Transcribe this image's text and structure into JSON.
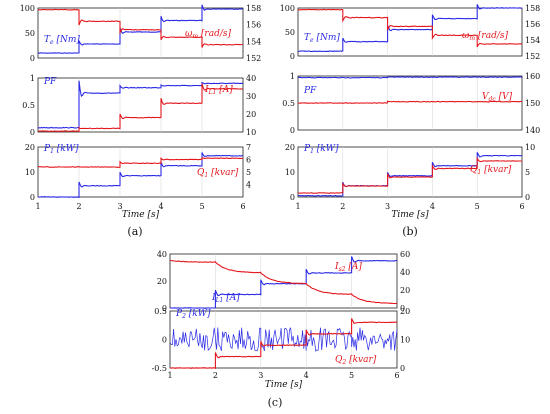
{
  "colors": {
    "blue": "#2a2ae6",
    "red": "#e4161c",
    "axis": "#222222",
    "grid": "#d4d4d4"
  },
  "chart_data": [
    {
      "caption": "(a)",
      "type": "line",
      "xlabel": "Time [s]",
      "xlim": [
        1,
        6
      ],
      "xticks": [
        "1",
        "2",
        "3",
        "4",
        "5",
        "6"
      ],
      "panels": [
        {
          "left_ylim": [
            0,
            100
          ],
          "left_ticks": [
            "0",
            "50",
            "100"
          ],
          "right_ylim": [
            152,
            158
          ],
          "right_ticks": [
            "152",
            "154",
            "156",
            "158"
          ],
          "series": [
            {
              "name": "Te [Nm]",
              "label_main": "T",
              "label_sub": "e",
              "label_unit": " [Nm]",
              "axis": "left",
              "color": "blue",
              "steps": [
                [
                  1,
                  10
                ],
                [
                  2,
                  28
                ],
                [
                  3,
                  52
                ],
                [
                  4,
                  75
                ],
                [
                  5,
                  98
                ],
                [
                  6,
                  98
                ]
              ]
            },
            {
              "name": "ωm [rad/s]",
              "label_main": "ω",
              "label_sub": "m",
              "label_unit": " [rad/s]",
              "axis": "right",
              "color": "red",
              "steps": [
                [
                  1,
                  157.8
                ],
                [
                  2,
                  156.4
                ],
                [
                  3,
                  155.4
                ],
                [
                  4,
                  154.5
                ],
                [
                  5,
                  153.6
                ],
                [
                  6,
                  153.6
                ]
              ]
            }
          ]
        },
        {
          "left_ylim": [
            0,
            1
          ],
          "left_ticks": [
            "0",
            "0.5",
            "1"
          ],
          "right_ylim": [
            10,
            40
          ],
          "right_ticks": [
            "10",
            "20",
            "30",
            "40"
          ],
          "series": [
            {
              "name": "PF",
              "label_main": "PF",
              "label_sub": "",
              "label_unit": "",
              "axis": "left",
              "color": "blue",
              "steps": [
                [
                  1,
                  0.08
                ],
                [
                  2,
                  0.72
                ],
                [
                  3,
                  0.82
                ],
                [
                  4,
                  0.86
                ],
                [
                  5,
                  0.9
                ],
                [
                  6,
                  0.9
                ]
              ]
            },
            {
              "name": "IL1 [A]",
              "label_main": "I",
              "label_sub": "L1",
              "label_unit": " [A]",
              "axis": "right",
              "color": "red",
              "steps": [
                [
                  1,
                  10.5
                ],
                [
                  2,
                  12
                ],
                [
                  3,
                  18
                ],
                [
                  4,
                  26
                ],
                [
                  5,
                  34
                ],
                [
                  6,
                  34
                ]
              ]
            }
          ]
        },
        {
          "left_ylim": [
            0,
            20
          ],
          "left_ticks": [
            "0",
            "10",
            "20"
          ],
          "right_ylim": [
            3,
            7
          ],
          "right_ticks": [
            "4",
            "5",
            "6",
            "7"
          ],
          "series": [
            {
              "name": "P1 [kW]",
              "label_main": "P",
              "label_sub": "1",
              "label_unit": " [kW]",
              "axis": "left",
              "color": "blue",
              "steps": [
                [
                  1,
                  0
                ],
                [
                  2,
                  4.5
                ],
                [
                  3,
                  8.5
                ],
                [
                  4,
                  12.5
                ],
                [
                  5,
                  16.5
                ],
                [
                  6,
                  16.5
                ]
              ]
            },
            {
              "name": "Q1 [kvar]",
              "label_main": "Q",
              "label_sub": "1",
              "label_unit": " [kvar]",
              "axis": "right",
              "color": "red",
              "steps": [
                [
                  1,
                  5.4
                ],
                [
                  2,
                  5.4
                ],
                [
                  3,
                  5.7
                ],
                [
                  4,
                  6.0
                ],
                [
                  5,
                  6.1
                ],
                [
                  6,
                  6.1
                ]
              ]
            }
          ]
        }
      ]
    },
    {
      "caption": "(b)",
      "type": "line",
      "xlabel": "Time [s]",
      "xlim": [
        1,
        6
      ],
      "xticks": [
        "1",
        "2",
        "3",
        "4",
        "5",
        "6"
      ],
      "panels": [
        {
          "left_ylim": [
            0,
            100
          ],
          "left_ticks": [
            "0",
            "50",
            "100"
          ],
          "right_ylim": [
            152,
            158
          ],
          "right_ticks": [
            "152",
            "154",
            "156",
            "158"
          ],
          "series": [
            {
              "name": "Te [Nm]",
              "label_main": "T",
              "label_sub": "e",
              "label_unit": " [Nm]",
              "axis": "left",
              "color": "blue",
              "steps": [
                [
                  1,
                  10
                ],
                [
                  2,
                  30
                ],
                [
                  3,
                  55
                ],
                [
                  4,
                  78
                ],
                [
                  5,
                  100
                ],
                [
                  6,
                  100
                ]
              ]
            },
            {
              "name": "ωm [rad/s]",
              "label_main": "ω",
              "label_sub": "m",
              "label_unit": " [rad/s]",
              "axis": "right",
              "color": "red",
              "steps": [
                [
                  1,
                  157.8
                ],
                [
                  2,
                  156.8
                ],
                [
                  3,
                  155.7
                ],
                [
                  4,
                  154.6
                ],
                [
                  5,
                  153.5
                ],
                [
                  6,
                  153.5
                ]
              ]
            }
          ]
        },
        {
          "left_ylim": [
            0,
            1
          ],
          "left_ticks": [
            "0",
            "0.5",
            "1"
          ],
          "right_ylim": [
            140,
            160
          ],
          "right_ticks": [
            "140",
            "150",
            "160"
          ],
          "series": [
            {
              "name": "PF",
              "label_main": "PF",
              "label_sub": "",
              "label_unit": "",
              "axis": "left",
              "color": "blue",
              "steps": [
                [
                  1,
                  0.97
                ],
                [
                  2,
                  0.97
                ],
                [
                  3,
                  0.98
                ],
                [
                  4,
                  0.98
                ],
                [
                  5,
                  0.98
                ],
                [
                  6,
                  0.98
                ]
              ]
            },
            {
              "name": "Vdc [V]",
              "label_main": "V",
              "label_sub": "dc",
              "label_unit": " [V]",
              "axis": "right",
              "color": "red",
              "steps": [
                [
                  1,
                  150
                ],
                [
                  2,
                  150
                ],
                [
                  3,
                  150.5
                ],
                [
                  4,
                  150.5
                ],
                [
                  5,
                  150.5
                ],
                [
                  6,
                  150.5
                ]
              ]
            }
          ]
        },
        {
          "left_ylim": [
            0,
            20
          ],
          "left_ticks": [
            "0",
            "10",
            "20"
          ],
          "right_ylim": [
            0,
            10
          ],
          "right_ticks": [
            "0",
            "5",
            "10"
          ],
          "series": [
            {
              "name": "P1 [kW]",
              "label_main": "P",
              "label_sub": "1",
              "label_unit": " [kW]",
              "axis": "left",
              "color": "blue",
              "steps": [
                [
                  1,
                  0.5
                ],
                [
                  2,
                  4.5
                ],
                [
                  3,
                  8.5
                ],
                [
                  4,
                  12.5
                ],
                [
                  5,
                  16.5
                ],
                [
                  6,
                  16.5
                ]
              ]
            },
            {
              "name": "Q1 [kvar]",
              "label_main": "Q",
              "label_sub": "1",
              "label_unit": " [kvar]",
              "axis": "right",
              "color": "red",
              "steps": [
                [
                  1,
                  0.8
                ],
                [
                  2,
                  2.2
                ],
                [
                  3,
                  4.0
                ],
                [
                  4,
                  5.7
                ],
                [
                  5,
                  7.2
                ],
                [
                  6,
                  7.2
                ]
              ]
            }
          ]
        }
      ]
    },
    {
      "caption": "(c)",
      "type": "line",
      "xlabel": "Time [s]",
      "xlim": [
        1,
        6
      ],
      "xticks": [
        "1",
        "2",
        "3",
        "4",
        "5",
        "6"
      ],
      "panels": [
        {
          "left_ylim": [
            0,
            40
          ],
          "left_ticks": [
            "0",
            "20",
            "40"
          ],
          "right_ylim": [
            0,
            60
          ],
          "right_ticks": [
            "0",
            "20",
            "40",
            "60"
          ],
          "series": [
            {
              "name": "IL1 [A]",
              "label_main": "I",
              "label_sub": "L1",
              "label_unit": " [A]",
              "axis": "left",
              "color": "blue",
              "steps": [
                [
                  1,
                  0
                ],
                [
                  2,
                  10
                ],
                [
                  3,
                  18
                ],
                [
                  4,
                  26
                ],
                [
                  5,
                  35
                ],
                [
                  6,
                  35
                ]
              ]
            },
            {
              "name": "Is2 [A]",
              "label_main": "I",
              "label_sub": "s2",
              "label_unit": " [A]",
              "axis": "right",
              "color": "red",
              "steps": [
                [
                  1,
                  53
                ],
                [
                  2,
                  51
                ],
                [
                  3,
                  39
                ],
                [
                  4,
                  27
                ],
                [
                  5,
                  15
                ],
                [
                  6,
                  5
                ]
              ]
            }
          ]
        },
        {
          "left_ylim": [
            -0.5,
            0.5
          ],
          "left_ticks": [
            "-0.5",
            "0",
            "0.5"
          ],
          "right_ylim": [
            0,
            20
          ],
          "right_ticks": [
            "0",
            "10",
            "20"
          ],
          "series": [
            {
              "name": "P2 [kW]",
              "label_main": "P",
              "label_sub": "2",
              "label_unit": " [kW]",
              "axis": "left",
              "color": "blue",
              "steps": [
                [
                  1,
                  0
                ],
                [
                  2,
                  0
                ],
                [
                  3,
                  0
                ],
                [
                  4,
                  0
                ],
                [
                  5,
                  0
                ],
                [
                  6,
                  0
                ]
              ]
            },
            {
              "name": "Q2 [kvar]",
              "label_main": "Q",
              "label_sub": "2",
              "label_unit": " [kvar]",
              "axis": "right",
              "color": "red",
              "steps": [
                [
                  1,
                  0
                ],
                [
                  2,
                  4
                ],
                [
                  3,
                  8
                ],
                [
                  4,
                  12
                ],
                [
                  5,
                  16
                ],
                [
                  6,
                  16
                ]
              ]
            }
          ]
        }
      ]
    }
  ]
}
